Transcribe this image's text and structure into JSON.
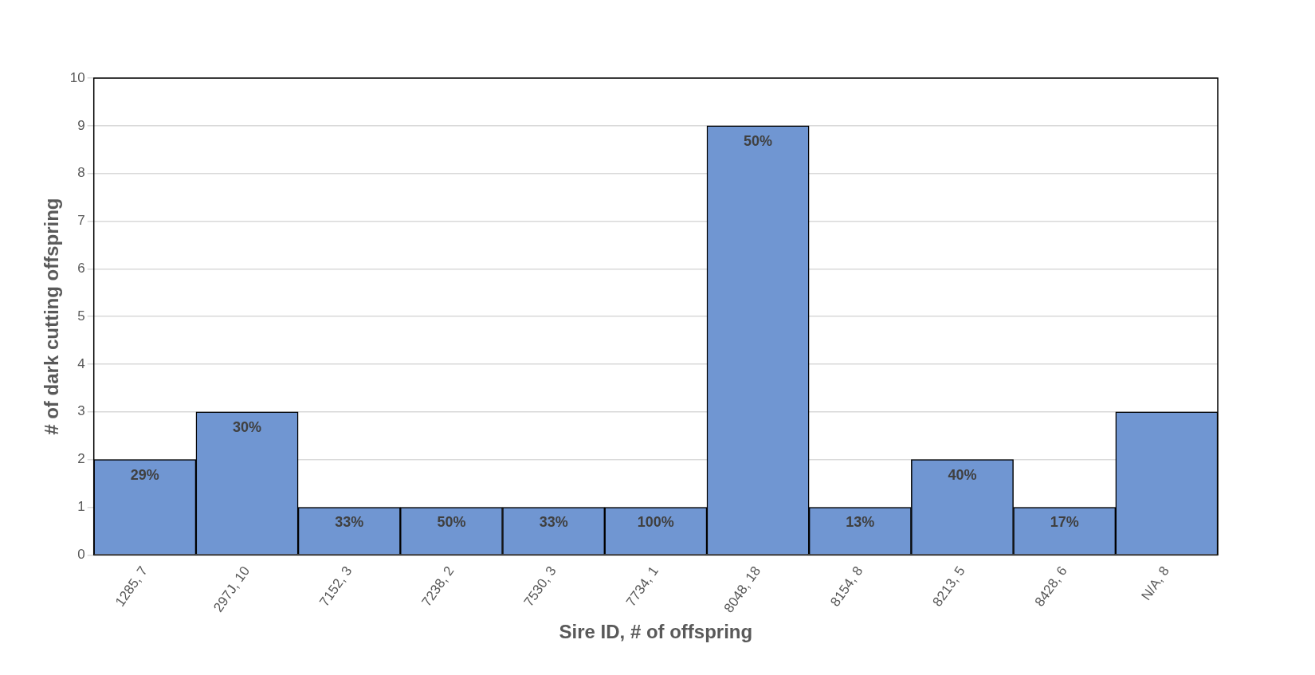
{
  "chart_data": {
    "type": "bar",
    "xlabel": "Sire ID, # of offspring",
    "ylabel": "# of dark cutting offspring",
    "categories": [
      "1285, 7",
      "297J, 10",
      "7152, 3",
      "7238, 2",
      "7530, 3",
      "7734, 1",
      "8048, 18",
      "8154, 8",
      "8213, 5",
      "8428, 6",
      "N/A, 8"
    ],
    "values": [
      2,
      3,
      1,
      1,
      1,
      1,
      9,
      1,
      2,
      1,
      3
    ],
    "annotations": [
      {
        "text": "29%",
        "x": "1285, 7",
        "y": 2
      },
      {
        "text": "30%",
        "x": "297J, 10",
        "y": 3
      },
      {
        "text": "33%",
        "x": "7152, 3",
        "y": 1
      },
      {
        "text": "50%",
        "x": "7238, 2",
        "y": 1
      },
      {
        "text": "33%",
        "x": "7530, 3",
        "y": 1
      },
      {
        "text": "100%",
        "x": "7734, 1",
        "y": 1
      },
      {
        "text": "50%",
        "x": "8048, 18",
        "y": 9
      },
      {
        "text": "13%",
        "x": "8154, 8",
        "y": 1
      },
      {
        "text": "40%",
        "x": "8213, 5",
        "y": 2
      },
      {
        "text": "17%",
        "x": "8428, 6",
        "y": 1
      }
    ],
    "color": "#7096d2",
    "ylim": [
      0,
      10
    ],
    "yticks": [
      0,
      1,
      2,
      3,
      4,
      5,
      6,
      7,
      8,
      9,
      10
    ],
    "grid": "y",
    "legend": false
  }
}
